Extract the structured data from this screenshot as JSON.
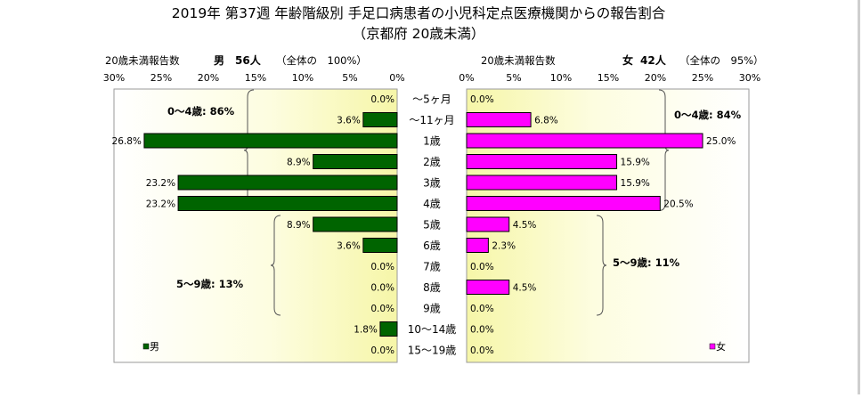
{
  "chart_data": {
    "type": "bar",
    "title": "2019年 第37週 年齢階級別 手足口病患者の小児科定点医療機関からの報告割合",
    "subtitle": "（京都府 20歳未満）",
    "categories": [
      "〜5ヶ月",
      "〜11ヶ月",
      "1歳",
      "2歳",
      "3歳",
      "4歳",
      "5歳",
      "6歳",
      "7歳",
      "8歳",
      "9歳",
      "10〜14歳",
      "15〜19歳"
    ],
    "series": [
      {
        "name": "男",
        "color": "#006400",
        "values": [
          0.0,
          3.6,
          26.8,
          8.9,
          23.2,
          23.2,
          8.9,
          3.6,
          0.0,
          0.0,
          0.0,
          1.8,
          0.0
        ],
        "labels": [
          "0.0%",
          "3.6%",
          "26.8%",
          "8.9%",
          "23.2%",
          "23.2%",
          "8.9%",
          "3.6%",
          "0.0%",
          "0.0%",
          "0.0%",
          "1.8%",
          "0.0%"
        ],
        "header_label": "20歳未満報告数",
        "header_name": "男",
        "header_count": "56人",
        "header_total": "（全体の　100%）",
        "legend": "男",
        "group_labels": [
          "0〜4歳: 86%",
          "5〜9歳: 13%"
        ]
      },
      {
        "name": "女",
        "color": "#ff00ff",
        "values": [
          0.0,
          6.8,
          25.0,
          15.9,
          15.9,
          20.5,
          4.5,
          2.3,
          0.0,
          4.5,
          0.0,
          0.0,
          0.0
        ],
        "labels": [
          "0.0%",
          "6.8%",
          "25.0%",
          "15.9%",
          "15.9%",
          "20.5%",
          "4.5%",
          "2.3%",
          "0.0%",
          "4.5%",
          "0.0%",
          "0.0%",
          "0.0%"
        ],
        "header_label": "20歳未満報告数",
        "header_name": "女",
        "header_count": "42人",
        "header_total": "（全体の　95%）",
        "legend": "女",
        "group_labels": [
          "0〜4歳: 84%",
          "5〜9歳: 11%"
        ]
      }
    ],
    "xlim": [
      0,
      30
    ],
    "x_ticks": [
      "0%",
      "5%",
      "10%",
      "15%",
      "20%",
      "25%",
      "30%"
    ],
    "grid": false,
    "legend_position": "bottom-left / bottom-right"
  }
}
